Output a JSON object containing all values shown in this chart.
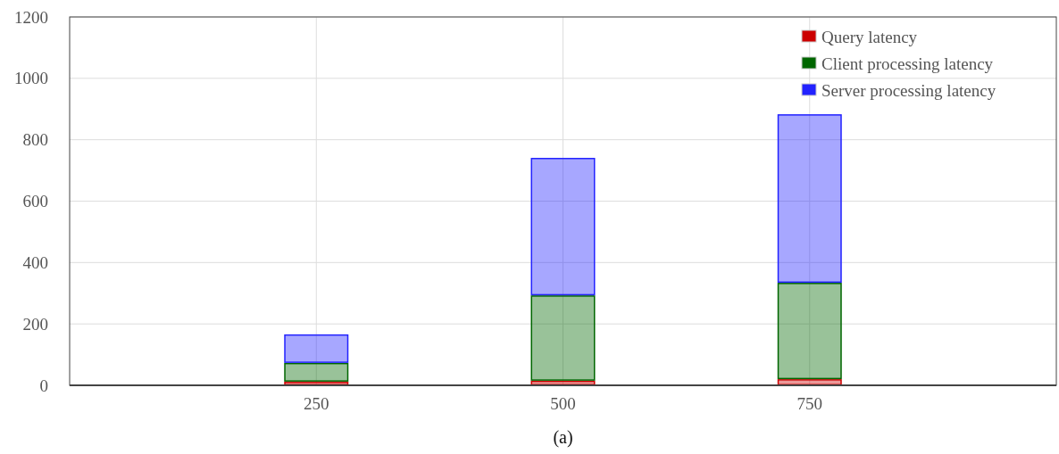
{
  "chart_data": {
    "type": "bar",
    "stacked": true,
    "x": [
      250,
      500,
      750
    ],
    "series": [
      {
        "name": "Query latency",
        "color": "#cc0000",
        "values": [
          12,
          15,
          20
        ]
      },
      {
        "name": "Client processing latency",
        "color": "#006600",
        "values": [
          61,
          278,
          314
        ]
      },
      {
        "name": "Server processing latency",
        "color": "#2222ff",
        "values": [
          93,
          448,
          549
        ]
      }
    ],
    "xlim": [
      0,
      1000
    ],
    "xticks": [
      250,
      500,
      750
    ],
    "ylim": [
      0,
      1200
    ],
    "yticks": [
      0,
      200,
      400,
      600,
      800,
      1000,
      1200
    ],
    "grid": true,
    "legend": "top right",
    "annotations": [
      "(a)"
    ]
  }
}
